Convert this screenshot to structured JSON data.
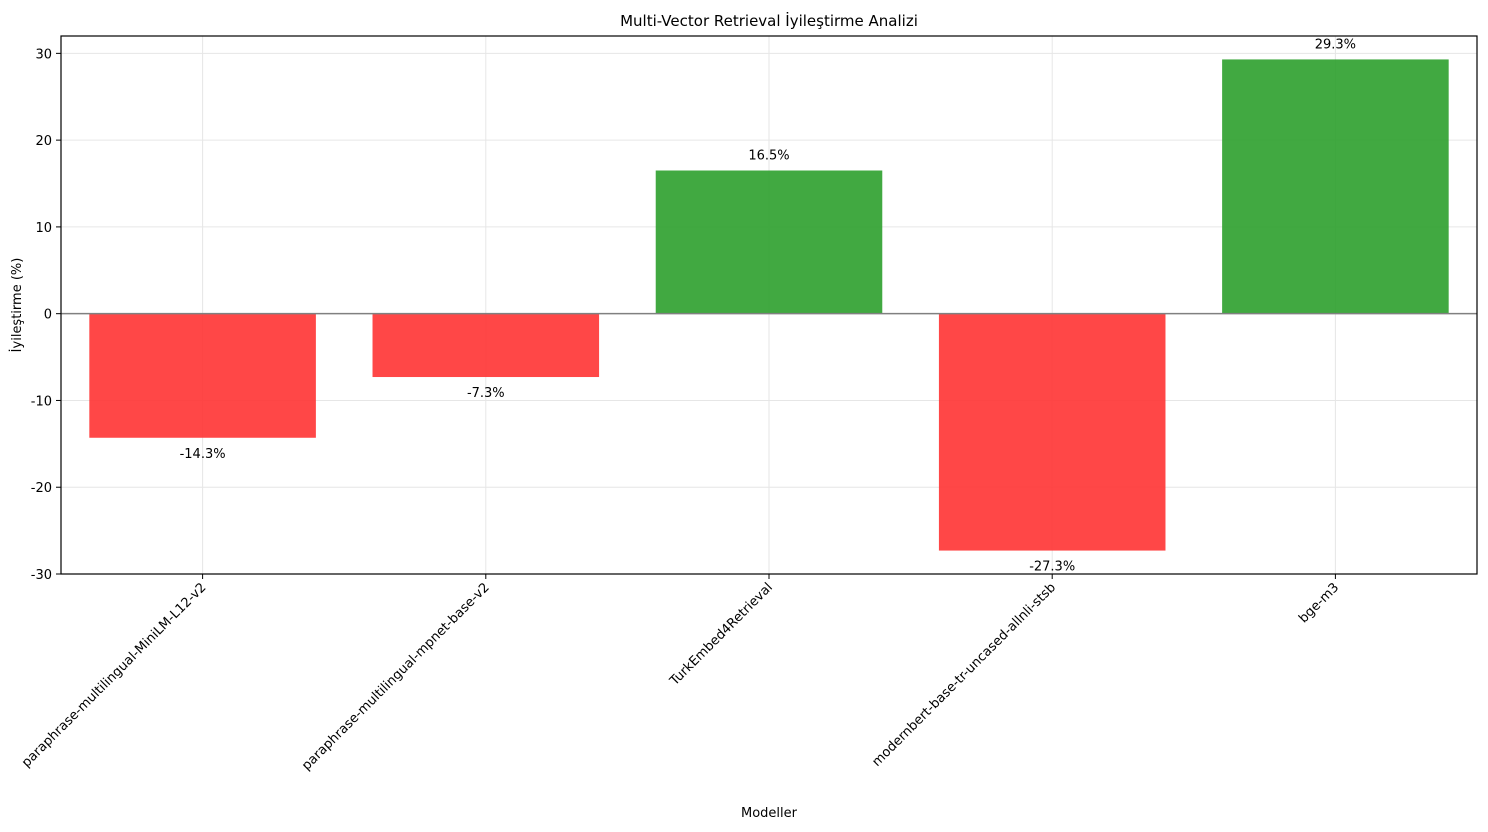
{
  "chart_data": {
    "type": "bar",
    "title": "Multi-Vector Retrieval İyileştirme Analizi",
    "xlabel": "Modeller",
    "ylabel": "İyileştirme (%)",
    "categories": [
      "paraphrase-multilingual-MiniLM-L12-v2",
      "paraphrase-multilingual-mpnet-base-v2",
      "TurkEmbed4Retrieval",
      "modernbert-base-tr-uncased-allnli-stsb",
      "bge-m3"
    ],
    "values": [
      -14.3,
      -7.3,
      16.5,
      -27.3,
      29.3
    ],
    "data_labels": [
      "-14.3%",
      "-7.3%",
      "16.5%",
      "-27.3%",
      "29.3%"
    ],
    "ylim": [
      -30,
      32
    ],
    "yticks": [
      -30,
      -20,
      -10,
      0,
      10,
      20,
      30
    ],
    "grid": true,
    "zero_line": true,
    "colors": {
      "positive": "#2ca02c",
      "negative": "#ff3333",
      "zero_line": "#808080",
      "grid": "#e6e6e6",
      "axes": "#000000"
    }
  }
}
